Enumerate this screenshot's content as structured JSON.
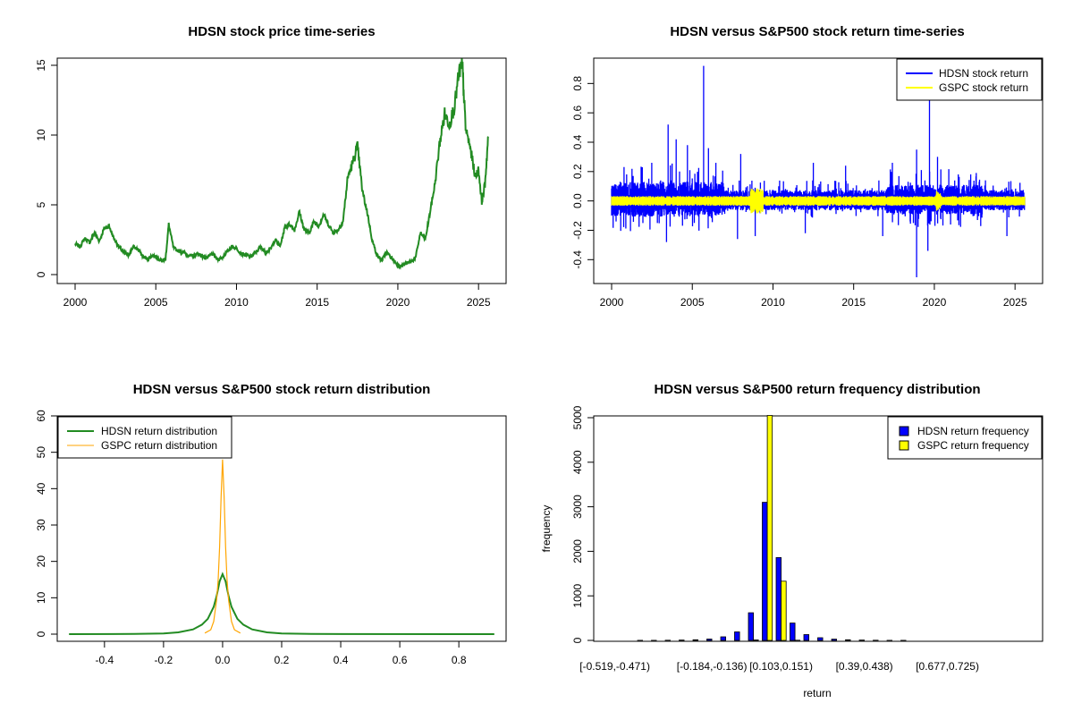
{
  "chart_data": [
    {
      "id": "price",
      "type": "line",
      "title": "HDSN stock price time-series",
      "xlabel": "",
      "ylabel": "",
      "xlim": [
        2000,
        2025.6
      ],
      "ylim": [
        0,
        15
      ],
      "xticks": [
        "2000",
        "2005",
        "2010",
        "2015",
        "2020",
        "2025"
      ],
      "yticks": [
        "0",
        "5",
        "10",
        "15"
      ],
      "color": "#228B22",
      "series": [
        {
          "name": "HDSN price",
          "x": [
            2000.0,
            2000.3,
            2000.6,
            2000.9,
            2001.2,
            2001.5,
            2001.8,
            2002.1,
            2002.4,
            2002.7,
            2003.0,
            2003.3,
            2003.6,
            2003.9,
            2004.2,
            2004.5,
            2004.8,
            2005.1,
            2005.4,
            2005.6,
            2005.8,
            2006.1,
            2006.4,
            2006.7,
            2007.0,
            2007.3,
            2007.6,
            2007.9,
            2008.2,
            2008.5,
            2008.8,
            2009.1,
            2009.4,
            2009.7,
            2010.0,
            2010.3,
            2010.6,
            2010.9,
            2011.2,
            2011.5,
            2011.8,
            2012.1,
            2012.4,
            2012.7,
            2013.0,
            2013.3,
            2013.6,
            2013.9,
            2014.2,
            2014.5,
            2014.8,
            2015.1,
            2015.4,
            2015.7,
            2016.0,
            2016.3,
            2016.6,
            2016.9,
            2017.2,
            2017.5,
            2017.8,
            2018.1,
            2018.4,
            2018.7,
            2019.0,
            2019.3,
            2019.6,
            2019.9,
            2020.2,
            2020.5,
            2020.8,
            2021.1,
            2021.4,
            2021.7,
            2022.0,
            2022.3,
            2022.6,
            2022.9,
            2023.2,
            2023.5,
            2023.8,
            2024.0,
            2024.2,
            2024.5,
            2024.8,
            2025.0,
            2025.2,
            2025.4,
            2025.6
          ],
          "y": [
            2.2,
            2.0,
            2.6,
            2.3,
            3.0,
            2.4,
            3.3,
            3.5,
            2.6,
            2.0,
            1.6,
            1.4,
            2.0,
            1.8,
            1.3,
            1.1,
            1.4,
            1.2,
            1.0,
            1.1,
            3.6,
            1.9,
            1.7,
            1.6,
            1.4,
            1.3,
            1.5,
            1.3,
            1.2,
            1.5,
            1.1,
            1.2,
            1.6,
            2.0,
            1.9,
            1.5,
            1.4,
            1.3,
            1.6,
            2.0,
            1.6,
            1.8,
            2.5,
            2.0,
            3.4,
            3.6,
            3.2,
            4.5,
            3.2,
            3.0,
            3.8,
            3.5,
            4.3,
            3.6,
            3.0,
            3.2,
            3.8,
            7.0,
            8.0,
            9.2,
            6.0,
            4.5,
            2.5,
            1.4,
            1.0,
            1.6,
            1.2,
            0.8,
            0.6,
            0.8,
            0.9,
            1.2,
            3.0,
            2.5,
            4.5,
            6.5,
            9.5,
            11.5,
            10.8,
            12.0,
            14.5,
            15.0,
            10.5,
            9.0,
            7.0,
            7.5,
            5.2,
            6.5,
            9.9
          ]
        }
      ]
    },
    {
      "id": "returns",
      "type": "line",
      "title": "HDSN versus S&P500 stock return time-series",
      "xlabel": "",
      "ylabel": "",
      "xlim": [
        2000,
        2025.6
      ],
      "ylim": [
        -0.52,
        0.93
      ],
      "xticks": [
        "2000",
        "2005",
        "2010",
        "2015",
        "2020",
        "2025"
      ],
      "yticks": [
        "-0.4",
        "-0.2",
        "0.0",
        "0.2",
        "0.4",
        "0.6",
        "0.8"
      ],
      "legend_position": "top-right",
      "series": [
        {
          "name": "HDSN stock return",
          "color": "#0000FF",
          "spikes": [
            [
              2003.5,
              0.52
            ],
            [
              2004.0,
              0.42
            ],
            [
              2004.7,
              0.38
            ],
            [
              2005.7,
              0.92
            ],
            [
              2006.0,
              0.36
            ],
            [
              2008.0,
              0.32
            ],
            [
              2012.5,
              0.26
            ],
            [
              2014.5,
              0.24
            ],
            [
              2017.4,
              0.26
            ],
            [
              2018.9,
              0.35
            ],
            [
              2019.7,
              0.69
            ],
            [
              2020.2,
              0.3
            ],
            [
              2003.4,
              -0.28
            ],
            [
              2007.8,
              -0.26
            ],
            [
              2008.9,
              -0.24
            ],
            [
              2012.0,
              -0.22
            ],
            [
              2016.8,
              -0.24
            ],
            [
              2018.9,
              -0.52
            ],
            [
              2019.6,
              -0.34
            ],
            [
              2024.5,
              -0.24
            ]
          ]
        },
        {
          "name": "GSPC stock return",
          "color": "#FFFF00"
        }
      ]
    },
    {
      "id": "density",
      "type": "line",
      "title": "HDSN versus S&P500 stock return distribution",
      "xlabel": "",
      "ylabel": "",
      "xlim": [
        -0.56,
        0.96
      ],
      "ylim": [
        0,
        60
      ],
      "xticks": [
        "-0.4",
        "-0.2",
        "0.0",
        "0.2",
        "0.4",
        "0.6",
        "0.8"
      ],
      "yticks": [
        "0",
        "10",
        "20",
        "30",
        "40",
        "50",
        "60"
      ],
      "legend_position": "top-left",
      "series": [
        {
          "name": "HDSN return distribution",
          "color": "#228B22",
          "x": [
            -0.52,
            -0.3,
            -0.2,
            -0.15,
            -0.1,
            -0.07,
            -0.05,
            -0.03,
            -0.02,
            -0.01,
            0.0,
            0.01,
            0.02,
            0.03,
            0.05,
            0.07,
            0.1,
            0.15,
            0.2,
            0.3,
            0.92
          ],
          "y": [
            0.0,
            0.05,
            0.2,
            0.5,
            1.3,
            2.6,
            4.2,
            7.5,
            10.5,
            14.5,
            16.5,
            14.5,
            10.5,
            7.5,
            4.2,
            2.6,
            1.3,
            0.5,
            0.2,
            0.05,
            0.0
          ]
        },
        {
          "name": "GSPC return distribution",
          "color": "#FFA500",
          "x": [
            -0.06,
            -0.04,
            -0.03,
            -0.02,
            -0.015,
            -0.01,
            -0.005,
            0.0,
            0.005,
            0.01,
            0.015,
            0.02,
            0.03,
            0.04,
            0.06
          ],
          "y": [
            0.3,
            1.2,
            3.5,
            9.5,
            15,
            24,
            38,
            48,
            38,
            24,
            15,
            9.5,
            3.5,
            1.2,
            0.3
          ]
        }
      ]
    },
    {
      "id": "hist",
      "type": "bar",
      "title": "HDSN versus S&P500 return frequency distribution",
      "xlabel": "return",
      "ylabel": "frequency",
      "ylim": [
        0,
        5000
      ],
      "yticks": [
        "0",
        "1000",
        "2000",
        "3000",
        "4000",
        "5000"
      ],
      "xtick_labels": [
        "[-0.519,-0.471)",
        "[-0.184,-0.136)",
        "[0.103,0.151)",
        "[0.39,0.438)",
        "[0.677,0.725)"
      ],
      "legend_position": "top-right",
      "series": [
        {
          "name": "HDSN return frequency",
          "color": "#0000FF",
          "values": [
            1,
            1,
            2,
            3,
            5,
            8,
            15,
            30,
            80,
            190,
            620,
            3100,
            1860,
            390,
            130,
            60,
            28,
            14,
            8,
            5,
            3,
            2,
            1,
            1,
            1,
            1,
            1,
            1,
            1,
            1
          ]
        },
        {
          "name": "GSPC return frequency",
          "color": "#FFFF00",
          "values": [
            0,
            0,
            0,
            0,
            0,
            0,
            0,
            0,
            0,
            0,
            10,
            5050,
            1330,
            5,
            0,
            0,
            0,
            0,
            0,
            0,
            0,
            0,
            0,
            0,
            0,
            0,
            0,
            0,
            0,
            0
          ]
        }
      ]
    }
  ]
}
